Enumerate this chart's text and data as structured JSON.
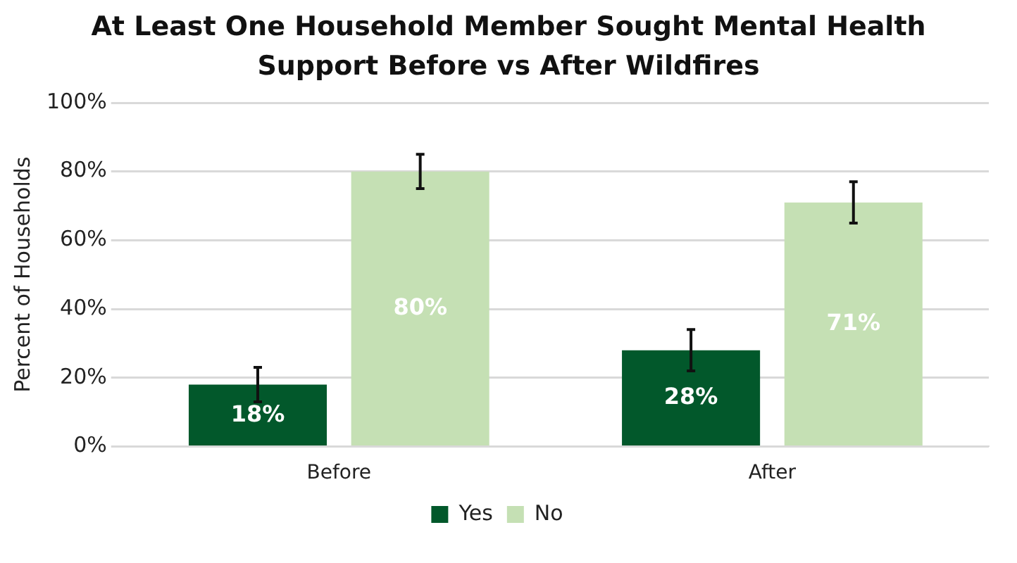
{
  "chart_data": {
    "type": "bar",
    "title": "At Least One Household Member Sought Mental Health Support Before vs After Wildfires",
    "ylabel": "Percent of Households",
    "categories": [
      "Before",
      "After"
    ],
    "series": [
      {
        "name": "Yes",
        "color": "#02582b",
        "values": [
          18,
          28
        ],
        "errors": [
          5,
          6
        ],
        "value_labels": [
          "18%",
          "28%"
        ]
      },
      {
        "name": "No",
        "color": "#c5e0b4",
        "values": [
          80,
          71
        ],
        "errors": [
          5,
          6
        ],
        "value_labels": [
          "80%",
          "71%"
        ]
      }
    ],
    "ylim": [
      0,
      100
    ],
    "yticks": [
      {
        "value": 0,
        "label": "0%"
      },
      {
        "value": 20,
        "label": "20%"
      },
      {
        "value": 40,
        "label": "40%"
      },
      {
        "value": 60,
        "label": "60%"
      },
      {
        "value": 80,
        "label": "80%"
      },
      {
        "value": 100,
        "label": "100%"
      }
    ],
    "grid": "y",
    "legend": "bottom"
  }
}
